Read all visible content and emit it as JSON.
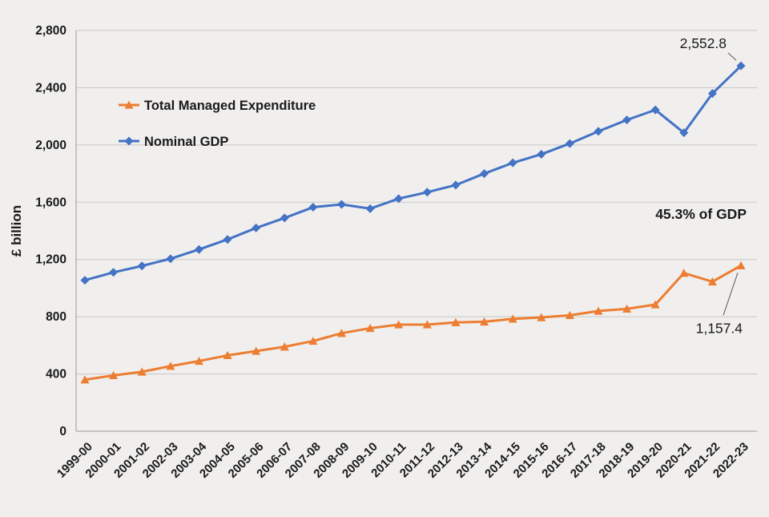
{
  "chart_data": {
    "type": "line",
    "title": "",
    "xlabel": "",
    "ylabel": "£ billion",
    "ylim": [
      0,
      2800
    ],
    "ytick_interval": 400,
    "ytick_labels": [
      "0",
      "400",
      "800",
      "1,200",
      "1,600",
      "2,000",
      "2,400",
      "2,800"
    ],
    "grid": true,
    "legend_position": "inside-top-left",
    "categories": [
      "1999-00",
      "2000-01",
      "2001-02",
      "2002-03",
      "2003-04",
      "2004-05",
      "2005-06",
      "2006-07",
      "2007-08",
      "2008-09",
      "2009-10",
      "2010-11",
      "2011-12",
      "2012-13",
      "2013-14",
      "2014-15",
      "2015-16",
      "2016-17",
      "2017-18",
      "2018-19",
      "2019-20",
      "2020-21",
      "2021-22",
      "2022-23"
    ],
    "series": [
      {
        "name": "Total Managed Expenditure",
        "marker": "triangle",
        "color": "#ED7D31",
        "values": [
          360,
          390,
          415,
          455,
          490,
          530,
          560,
          590,
          630,
          685,
          720,
          745,
          745,
          760,
          765,
          785,
          795,
          810,
          840,
          855,
          885,
          1105,
          1045,
          1157.4
        ]
      },
      {
        "name": "Nominal GDP",
        "marker": "diamond",
        "color": "#4472C4",
        "values": [
          1055,
          1110,
          1155,
          1205,
          1270,
          1340,
          1420,
          1490,
          1565,
          1585,
          1555,
          1625,
          1670,
          1720,
          1800,
          1875,
          1935,
          2010,
          2095,
          2175,
          2245,
          2085,
          2360,
          2552.8
        ]
      }
    ],
    "annotations": [
      {
        "id": "gdp-final-value",
        "text": "2,552.8",
        "series": "Nominal GDP",
        "point_index": 23
      },
      {
        "id": "tme-final-value",
        "text": "1,157.4",
        "series": "Total Managed Expenditure",
        "point_index": 23
      },
      {
        "id": "tme-share-of-gdp",
        "text": "45.3% of GDP"
      }
    ],
    "colors": {
      "background": "#f0efee",
      "gridline": "#c9c7c5",
      "axis": "#9a9896",
      "text": "#1a1a1a",
      "tme": "#ED7D31",
      "gdp": "#4472C4"
    }
  }
}
